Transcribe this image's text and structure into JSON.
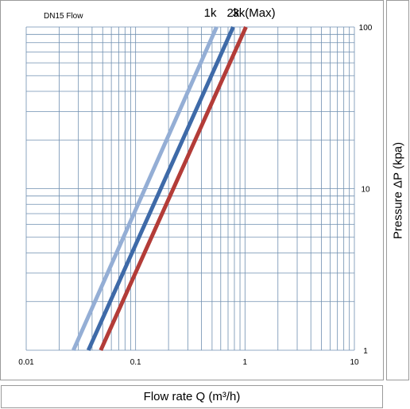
{
  "chart_data": {
    "type": "line",
    "title": "DN15 Flow",
    "xlabel": "Flow  rate Q (m³/h)",
    "ylabel": "Pressure ΔP (kpa)",
    "x_scale": "log",
    "y_scale": "log",
    "xlim": [
      0.01,
      10
    ],
    "ylim": [
      1,
      100
    ],
    "x_ticks": [
      {
        "value": 0.01,
        "label": "0.01"
      },
      {
        "value": 0.1,
        "label": "0.1"
      },
      {
        "value": 1,
        "label": "1"
      },
      {
        "value": 10,
        "label": "10"
      }
    ],
    "y_ticks": [
      {
        "value": 1,
        "label": "1"
      },
      {
        "value": 10,
        "label": "10"
      },
      {
        "value": 100,
        "label": "100"
      }
    ],
    "grid": true,
    "series": [
      {
        "name": "1k",
        "color": "#94aed5",
        "points": [
          [
            0.027,
            1
          ],
          [
            0.55,
            100
          ]
        ]
      },
      {
        "name": "2k",
        "color": "#3e6aa8",
        "points": [
          [
            0.037,
            1
          ],
          [
            0.78,
            100
          ]
        ]
      },
      {
        "name": "3k(Max)",
        "color": "#b33c38",
        "points": [
          [
            0.048,
            1
          ],
          [
            1.02,
            100
          ]
        ]
      }
    ]
  }
}
